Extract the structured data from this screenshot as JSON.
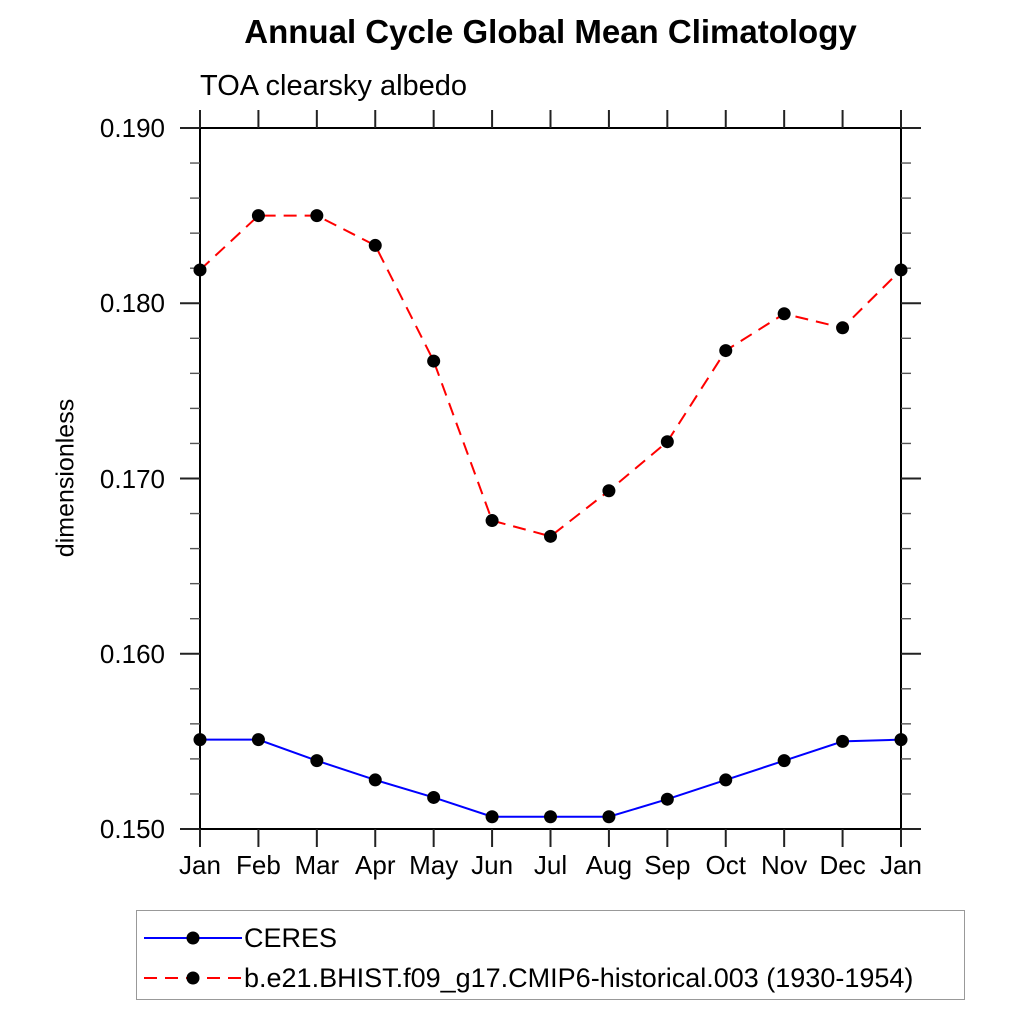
{
  "title": "Annual Cycle Global Mean Climatology",
  "subtitle": "TOA clearsky albedo",
  "chart_data": {
    "type": "line",
    "x_categories": [
      "Jan",
      "Feb",
      "Mar",
      "Apr",
      "May",
      "Jun",
      "Jul",
      "Aug",
      "Sep",
      "Oct",
      "Nov",
      "Dec",
      "Jan"
    ],
    "ylabel": "dimensionless",
    "ylim": [
      0.15,
      0.19
    ],
    "y_major_ticks": [
      0.15,
      0.16,
      0.17,
      0.18,
      0.19
    ],
    "y_tick_labels": [
      "0.150",
      "0.160",
      "0.170",
      "0.180",
      "0.190"
    ],
    "y_minor_step": 0.002,
    "grid": "off",
    "legend_position": "bottom-left",
    "series": [
      {
        "name": "CERES",
        "color": "#0000ff",
        "line_style": "solid",
        "marker": "filled-circle",
        "marker_color": "#000000",
        "values": [
          0.1551,
          0.1551,
          0.1539,
          0.1528,
          0.1518,
          0.1507,
          0.1507,
          0.1507,
          0.1517,
          0.1528,
          0.1539,
          0.155,
          0.1551
        ]
      },
      {
        "name": "b.e21.BHIST.f09_g17.CMIP6-historical.003 (1930-1954)",
        "color": "#ff0000",
        "line_style": "dashed",
        "marker": "filled-circle",
        "marker_color": "#000000",
        "values": [
          0.1819,
          0.185,
          0.185,
          0.1833,
          0.1767,
          0.1676,
          0.1667,
          0.1693,
          0.1721,
          0.1773,
          0.1794,
          0.1786,
          0.1819
        ]
      }
    ]
  }
}
